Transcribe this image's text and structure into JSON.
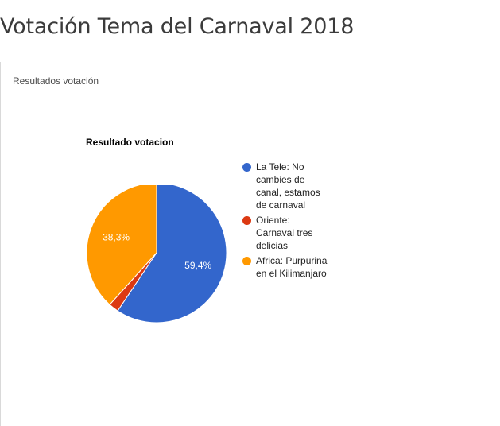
{
  "page": {
    "title": "Votación Tema del Carnaval 2018"
  },
  "panel": {
    "title": "Resultados votación"
  },
  "chart_data": {
    "type": "pie",
    "title": "Resultado votacion",
    "legend_position": "right",
    "labels": [
      "La Tele: No cambies de canal, estamos de carnaval",
      "Oriente: Carnaval tres delicias",
      "Africa: Purpurina en el Kilimanjaro"
    ],
    "values": [
      59.4,
      2.3,
      38.3
    ],
    "value_labels": [
      "59,4%",
      "",
      "38,3%"
    ],
    "colors": [
      "#3366cc",
      "#dc3912",
      "#ff9900"
    ]
  }
}
